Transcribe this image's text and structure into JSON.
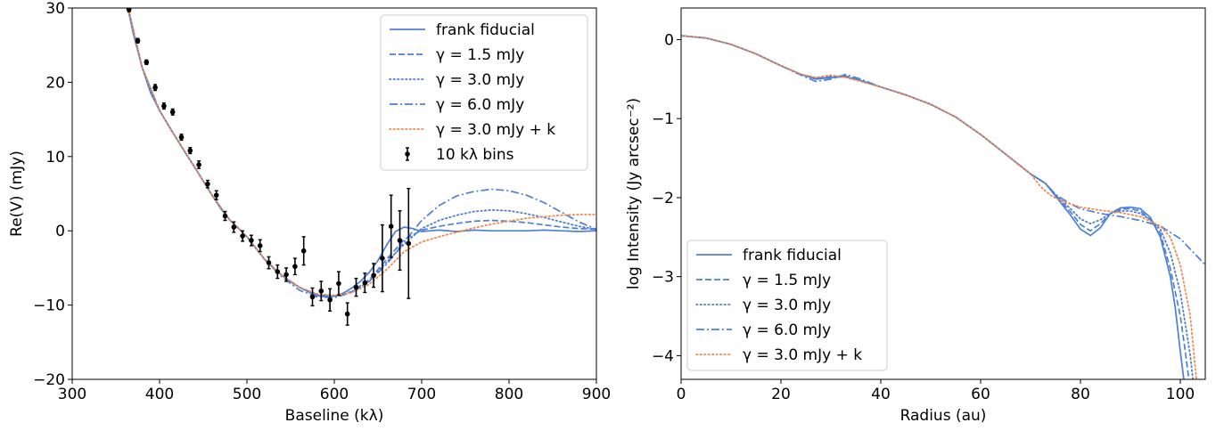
{
  "chart_data": [
    {
      "type": "line",
      "xlabel": "Baseline (kλ)",
      "ylabel": "Re(V) (mJy)",
      "xlim": [
        300,
        900
      ],
      "ylim": [
        -20,
        30
      ],
      "xticks": [
        "300",
        "400",
        "500",
        "600",
        "700",
        "800",
        "900"
      ],
      "yticks": [
        "−20",
        "−10",
        "0",
        "10",
        "20",
        "30"
      ],
      "legend_position": "upper-right",
      "colors": {
        "blue": "#4f7fd6",
        "orange": "#f2894d",
        "black": "#000000"
      },
      "legend": [
        {
          "label": "frank fiducial",
          "style": "solid",
          "color": "#4f7fd6"
        },
        {
          "label": "γ = 1.5 mJy",
          "style": "dashed",
          "color": "#4f7fd6"
        },
        {
          "label": "γ = 3.0 mJy",
          "style": "dotted",
          "color": "#4f7fd6"
        },
        {
          "label": "γ = 6.0 mJy",
          "style": "dashdot",
          "color": "#4f7fd6"
        },
        {
          "label": "γ = 3.0 mJy + k",
          "style": "dotted",
          "color": "#f2894d"
        },
        {
          "label": "10 kλ bins",
          "style": "errorbar",
          "color": "#000000"
        }
      ],
      "series": [
        {
          "name": "frank fiducial",
          "style": "solid",
          "color": "#4f7fd6",
          "x": [
            360,
            370,
            380,
            390,
            400,
            410,
            420,
            430,
            440,
            450,
            460,
            470,
            480,
            490,
            500,
            510,
            520,
            530,
            540,
            550,
            560,
            570,
            580,
            590,
            600,
            610,
            620,
            630,
            640,
            650,
            660,
            670,
            680,
            690,
            700,
            710,
            720,
            740,
            760,
            780,
            800,
            820,
            840,
            860,
            880,
            900
          ],
          "y": [
            32,
            26.5,
            22,
            18.5,
            16.2,
            14.2,
            12.3,
            10.4,
            8.6,
            6.7,
            4.8,
            3.0,
            1.5,
            0.4,
            -0.8,
            -2.3,
            -3.8,
            -5.0,
            -6.0,
            -6.9,
            -7.6,
            -8.2,
            -8.7,
            -8.9,
            -8.8,
            -8.4,
            -7.7,
            -6.8,
            -5.6,
            -4.0,
            -1.9,
            -0.1,
            0.5,
            0.3,
            -0.1,
            0.0,
            0.1,
            -0.1,
            0.1,
            0.0,
            0.0,
            0.0,
            0.1,
            0.0,
            -0.1,
            0.0
          ]
        },
        {
          "name": "γ = 1.5 mJy",
          "style": "dashed",
          "color": "#4f7fd6",
          "x": [
            360,
            380,
            400,
            420,
            440,
            460,
            480,
            500,
            520,
            540,
            560,
            580,
            600,
            620,
            640,
            660,
            680,
            700,
            720,
            740,
            760,
            780,
            800,
            820,
            840,
            860,
            880,
            900
          ],
          "y": [
            32,
            22,
            16.2,
            12.3,
            8.6,
            4.8,
            1.5,
            -0.8,
            -3.8,
            -6.0,
            -7.6,
            -8.6,
            -8.8,
            -8.2,
            -6.6,
            -3.8,
            -1.2,
            0.1,
            0.6,
            1.0,
            1.3,
            1.4,
            1.3,
            1.1,
            0.8,
            0.5,
            0.3,
            0.2
          ]
        },
        {
          "name": "γ = 3.0 mJy",
          "style": "dotted",
          "color": "#4f7fd6",
          "x": [
            360,
            380,
            400,
            420,
            440,
            460,
            480,
            500,
            520,
            540,
            560,
            580,
            600,
            620,
            640,
            660,
            680,
            700,
            720,
            740,
            760,
            780,
            800,
            820,
            840,
            860,
            880,
            900
          ],
          "y": [
            32,
            22,
            16.2,
            12.3,
            8.6,
            4.8,
            1.5,
            -0.8,
            -3.8,
            -6.0,
            -7.6,
            -8.5,
            -8.7,
            -8.2,
            -6.8,
            -4.2,
            -1.8,
            0.3,
            1.4,
            2.1,
            2.6,
            2.8,
            2.7,
            2.3,
            1.8,
            1.2,
            0.6,
            0.2
          ]
        },
        {
          "name": "γ = 6.0 mJy",
          "style": "dashdot",
          "color": "#4f7fd6",
          "x": [
            360,
            380,
            400,
            420,
            440,
            460,
            480,
            500,
            520,
            540,
            560,
            580,
            600,
            620,
            640,
            660,
            680,
            700,
            720,
            740,
            760,
            780,
            800,
            820,
            840,
            860,
            880,
            900
          ],
          "y": [
            32,
            22,
            16.2,
            12.3,
            8.6,
            4.8,
            1.5,
            -0.8,
            -3.8,
            -6.2,
            -8.0,
            -8.9,
            -9.0,
            -8.3,
            -6.8,
            -4.5,
            -1.5,
            1.4,
            3.4,
            4.7,
            5.3,
            5.6,
            5.4,
            4.8,
            3.8,
            2.5,
            1.2,
            0.2
          ]
        },
        {
          "name": "γ = 3.0 mJy + k",
          "style": "dotted",
          "color": "#f2894d",
          "x": [
            360,
            380,
            400,
            420,
            440,
            460,
            480,
            500,
            520,
            540,
            560,
            580,
            600,
            620,
            640,
            660,
            680,
            700,
            720,
            740,
            760,
            780,
            800,
            820,
            840,
            860,
            880,
            900
          ],
          "y": [
            32,
            22,
            16.2,
            12.3,
            8.6,
            4.8,
            1.5,
            -0.8,
            -3.8,
            -6.0,
            -7.6,
            -8.5,
            -8.7,
            -8.3,
            -7.2,
            -5.2,
            -2.8,
            -1.5,
            -0.8,
            -0.2,
            0.4,
            0.9,
            1.3,
            1.7,
            1.9,
            2.1,
            2.2,
            2.2
          ]
        }
      ],
      "binned_points": {
        "name": "10 kλ bins",
        "x": [
          365,
          375,
          385,
          395,
          405,
          415,
          425,
          435,
          445,
          455,
          465,
          475,
          485,
          495,
          505,
          515,
          525,
          535,
          545,
          555,
          565,
          575,
          585,
          595,
          605,
          615,
          625,
          635,
          645,
          655,
          665,
          675,
          685
        ],
        "y": [
          29.8,
          25.6,
          22.7,
          19.3,
          16.8,
          16.0,
          12.6,
          10.8,
          8.9,
          6.3,
          4.8,
          2.0,
          0.5,
          -0.7,
          -1.3,
          -2.0,
          -4.3,
          -5.5,
          -5.9,
          -4.8,
          -2.7,
          -8.9,
          -8.1,
          -9.3,
          -7.1,
          -11.2,
          -7.6,
          -7.0,
          -6.0,
          -3.7,
          0.6,
          -1.3,
          -1.7
        ],
        "err": [
          0.3,
          0.3,
          0.3,
          0.4,
          0.4,
          0.4,
          0.4,
          0.4,
          0.5,
          0.5,
          0.6,
          0.6,
          0.7,
          0.7,
          0.7,
          0.8,
          0.8,
          0.9,
          0.9,
          1.1,
          1.9,
          1.2,
          1.3,
          1.5,
          1.6,
          1.5,
          1.2,
          1.3,
          1.6,
          4.5,
          4.2,
          4.0,
          7.4
        ]
      }
    },
    {
      "type": "line",
      "xlabel": "Radius (au)",
      "ylabel": "log Intensity (Jy arcsec⁻²)",
      "xlim": [
        0,
        105
      ],
      "ylim": [
        -4.3,
        0.4
      ],
      "xticks": [
        "0",
        "20",
        "40",
        "60",
        "80",
        "100"
      ],
      "yticks": [
        "−4",
        "−3",
        "−2",
        "−1",
        "0"
      ],
      "legend_position": "lower-left",
      "colors": {
        "blue": "#4f7fd6",
        "orange": "#f2894d"
      },
      "legend": [
        {
          "label": "frank fiducial",
          "style": "solid",
          "color": "#4f7fd6"
        },
        {
          "label": "γ = 1.5 mJy",
          "style": "dashed",
          "color": "#4f7fd6"
        },
        {
          "label": "γ = 3.0 mJy",
          "style": "dotted",
          "color": "#4f7fd6"
        },
        {
          "label": "γ = 6.0 mJy",
          "style": "dashdot",
          "color": "#4f7fd6"
        },
        {
          "label": "γ = 3.0 mJy + k",
          "style": "dotted",
          "color": "#f2894d"
        }
      ],
      "series": [
        {
          "name": "frank fiducial",
          "style": "solid",
          "color": "#4f7fd6",
          "x": [
            0,
            5,
            10,
            15,
            20,
            24,
            27,
            30,
            33,
            36,
            40,
            45,
            50,
            55,
            60,
            65,
            70,
            73,
            75,
            78,
            80,
            82,
            84,
            86,
            88,
            90,
            92,
            94,
            96,
            98,
            99,
            100,
            100.8
          ],
          "y": [
            0.05,
            0.02,
            -0.06,
            -0.18,
            -0.33,
            -0.44,
            -0.5,
            -0.48,
            -0.47,
            -0.52,
            -0.6,
            -0.7,
            -0.82,
            -0.98,
            -1.2,
            -1.45,
            -1.7,
            -1.82,
            -1.98,
            -2.22,
            -2.4,
            -2.48,
            -2.38,
            -2.2,
            -2.13,
            -2.12,
            -2.14,
            -2.25,
            -2.5,
            -3.0,
            -3.4,
            -3.95,
            -4.35
          ]
        },
        {
          "name": "γ = 1.5 mJy",
          "style": "dashed",
          "color": "#4f7fd6",
          "x": [
            0,
            5,
            10,
            15,
            20,
            24,
            27,
            30,
            33,
            36,
            40,
            45,
            50,
            55,
            60,
            65,
            70,
            73,
            75,
            78,
            80,
            82,
            84,
            86,
            88,
            90,
            92,
            94,
            96,
            98,
            100,
            101,
            101.8
          ],
          "y": [
            0.05,
            0.02,
            -0.06,
            -0.18,
            -0.33,
            -0.44,
            -0.49,
            -0.47,
            -0.46,
            -0.52,
            -0.6,
            -0.7,
            -0.82,
            -0.98,
            -1.2,
            -1.45,
            -1.7,
            -1.82,
            -1.97,
            -2.18,
            -2.34,
            -2.42,
            -2.33,
            -2.2,
            -2.15,
            -2.14,
            -2.17,
            -2.28,
            -2.45,
            -2.9,
            -3.5,
            -3.95,
            -4.35
          ]
        },
        {
          "name": "γ = 3.0 mJy",
          "style": "dotted",
          "color": "#4f7fd6",
          "x": [
            0,
            5,
            10,
            15,
            20,
            24,
            27,
            30,
            33,
            36,
            40,
            45,
            50,
            55,
            60,
            65,
            70,
            73,
            75,
            78,
            80,
            82,
            84,
            86,
            88,
            90,
            92,
            94,
            96,
            98,
            100,
            102,
            102.6
          ],
          "y": [
            0.05,
            0.02,
            -0.06,
            -0.18,
            -0.33,
            -0.44,
            -0.48,
            -0.46,
            -0.47,
            -0.52,
            -0.6,
            -0.7,
            -0.82,
            -0.98,
            -1.2,
            -1.45,
            -1.7,
            -1.82,
            -1.96,
            -2.14,
            -2.27,
            -2.33,
            -2.28,
            -2.2,
            -2.17,
            -2.17,
            -2.2,
            -2.28,
            -2.4,
            -2.7,
            -3.2,
            -4.0,
            -4.35
          ]
        },
        {
          "name": "γ = 6.0 mJy",
          "style": "dashdot",
          "color": "#4f7fd6",
          "x": [
            0,
            5,
            10,
            15,
            20,
            24,
            27,
            30,
            33,
            36,
            40,
            45,
            50,
            55,
            60,
            65,
            70,
            73,
            75,
            78,
            80,
            84,
            88,
            92,
            96,
            100,
            105
          ],
          "y": [
            0.05,
            0.02,
            -0.06,
            -0.18,
            -0.33,
            -0.45,
            -0.53,
            -0.5,
            -0.44,
            -0.5,
            -0.6,
            -0.7,
            -0.82,
            -0.98,
            -1.2,
            -1.45,
            -1.7,
            -1.82,
            -1.96,
            -2.08,
            -2.14,
            -2.2,
            -2.24,
            -2.29,
            -2.36,
            -2.52,
            -2.85
          ]
        },
        {
          "name": "γ = 3.0 mJy + k",
          "style": "dotted",
          "color": "#f2894d",
          "x": [
            0,
            5,
            10,
            15,
            20,
            24,
            27,
            30,
            33,
            36,
            40,
            45,
            50,
            55,
            60,
            65,
            70,
            72,
            74,
            76,
            78,
            80,
            84,
            88,
            92,
            96,
            98,
            100,
            102,
            103.3
          ],
          "y": [
            0.05,
            0.02,
            -0.06,
            -0.18,
            -0.33,
            -0.44,
            -0.48,
            -0.45,
            -0.48,
            -0.53,
            -0.6,
            -0.7,
            -0.82,
            -0.98,
            -1.2,
            -1.45,
            -1.7,
            -1.86,
            -1.97,
            -2.04,
            -2.08,
            -2.12,
            -2.16,
            -2.19,
            -2.24,
            -2.36,
            -2.5,
            -2.85,
            -3.5,
            -4.35
          ]
        }
      ]
    }
  ]
}
